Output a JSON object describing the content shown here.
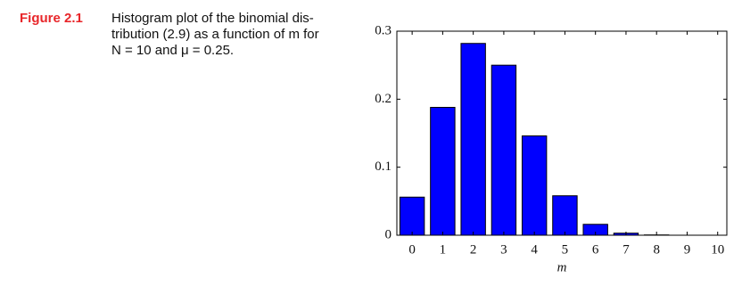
{
  "caption": {
    "label": "Figure 2.1",
    "lines": [
      "Histogram plot of the binomial dis-",
      "tribution (2.9) as a function of m for",
      "N = 10 and μ = 0.25."
    ]
  },
  "chart_data": {
    "type": "bar",
    "x": [
      0,
      1,
      2,
      3,
      4,
      5,
      6,
      7,
      8,
      9,
      10
    ],
    "values": [
      0.056,
      0.188,
      0.282,
      0.25,
      0.146,
      0.058,
      0.016,
      0.003,
      0.0004,
      0,
      0
    ],
    "color": "#0000ff",
    "x_label": "m",
    "xlim": [
      -0.5,
      10.3
    ],
    "xticks": [
      0,
      1,
      2,
      3,
      4,
      5,
      6,
      7,
      8,
      9,
      10
    ],
    "ylim": [
      0,
      0.3
    ],
    "yticks": [
      0,
      0.1,
      0.2,
      0.3
    ]
  }
}
